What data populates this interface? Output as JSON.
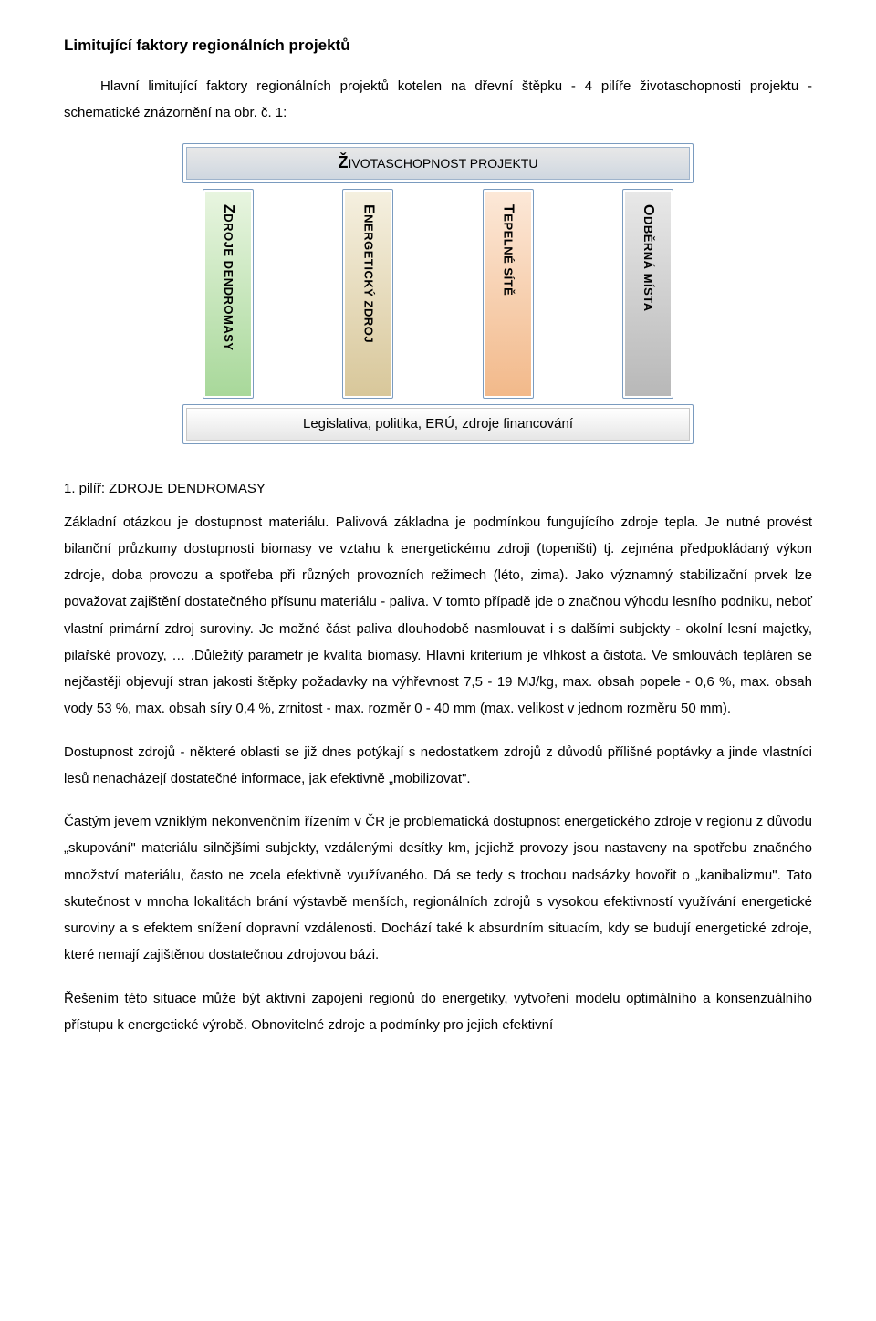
{
  "title": "Limitující faktory regionálních projektů",
  "intro": "Hlavní limitující faktory regionálních projektů kotelen na dřevní štěpku - 4 pilíře životaschopnosti projektu - schematické znázornění na obr. č. 1:",
  "diagram": {
    "top_label": "ŽIVOTASCHOPNOST PROJEKTU",
    "top_bg_gradient": [
      "#e8e8e8",
      "#cfd7e0"
    ],
    "top_border": "#9fb4cc",
    "bottom_label": "Legislativa, politika, ERÚ, zdroje financování",
    "bottom_bg_gradient": [
      "#ffffff",
      "#e6e6e6"
    ],
    "bottom_border": "#c7c7c7",
    "outer_border": "#7a9bbf",
    "pillars": [
      {
        "cap": "Z",
        "rest": "DROJE DENDROMASY",
        "gradient": [
          "#e8f5e0",
          "#a8d89a"
        ]
      },
      {
        "cap": "E",
        "rest": "NERGETICKÝ ZDROJ",
        "gradient": [
          "#f5f0e0",
          "#d8c79a"
        ]
      },
      {
        "cap": "T",
        "rest": "EPELNÉ SÍTĚ",
        "gradient": [
          "#fce8d8",
          "#f2b98a"
        ]
      },
      {
        "cap": "O",
        "rest": "DBĚRNÁ MÍSTA",
        "gradient": [
          "#e8e8e8",
          "#b8b8b8"
        ]
      }
    ]
  },
  "section1_head": "1. pilíř: ZDROJE DENDROMASY",
  "para1": "Základní otázkou je dostupnost materiálu. Palivová základna je podmínkou fungujícího zdroje tepla. Je nutné provést bilanční průzkumy dostupnosti biomasy ve vztahu k energetickému zdroji (topeništi) tj. zejména předpokládaný výkon zdroje, doba provozu a spotřeba při různých provozních režimech (léto, zima). Jako významný stabilizační prvek lze považovat zajištění dostatečného přísunu materiálu - paliva. V tomto případě jde o značnou výhodu lesního podniku, neboť vlastní primární zdroj suroviny. Je možné část paliva dlouhodobě nasmlouvat i s dalšími subjekty - okolní lesní majetky, pilařské provozy, … .Důležitý parametr je kvalita biomasy. Hlavní kriterium je vlhkost a čistota. Ve smlouvách tepláren se nejčastěji objevují stran jakosti štěpky požadavky na výhřevnost 7,5 - 19 MJ/kg, max. obsah popele - 0,6 %, max. obsah vody 53 %, max. obsah síry 0,4 %, zrnitost - max. rozměr 0 - 40 mm (max. velikost v jednom rozměru 50 mm).",
  "para2": "Dostupnost zdrojů - některé oblasti se již dnes potýkají s nedostatkem zdrojů z důvodů přílišné poptávky a jinde vlastníci lesů nenacházejí dostatečné informace, jak efektivně „mobilizovat\".",
  "para3": "Častým jevem vzniklým nekonvenčním řízením v ČR je problematická dostupnost energetického zdroje v regionu z důvodu „skupování\" materiálu silnějšími subjekty, vzdálenými desítky km, jejichž provozy jsou nastaveny na spotřebu značného množství materiálu, často ne zcela efektivně využívaného. Dá se tedy s trochou nadsázky hovořit o „kanibalizmu\". Tato skutečnost v mnoha lokalitách brání výstavbě menších, regionálních zdrojů s vysokou efektivností využívání energetické suroviny a s efektem snížení dopravní vzdálenosti. Dochází také k absurdním situacím, kdy se budují energetické zdroje, které nemají zajištěnou dostatečnou zdrojovou bázi.",
  "para4": "Řešením této situace může být aktivní zapojení regionů do energetiky, vytvoření modelu optimálního a konsenzuálního přístupu k energetické výrobě. Obnovitelné zdroje a podmínky pro jejich efektivní"
}
